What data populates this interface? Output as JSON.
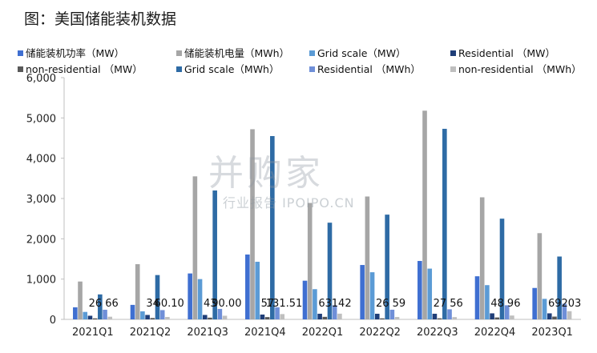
{
  "title": "图：美国储能装机数据",
  "watermark": {
    "main": "并购家",
    "sub": "行业报告 IPOIPO.CN"
  },
  "chart_data": {
    "type": "bar",
    "categories": [
      "2021Q1",
      "2021Q2",
      "2021Q3",
      "2021Q4",
      "2022Q1",
      "2022Q2",
      "2022Q3",
      "2022Q4",
      "2023Q1"
    ],
    "ylim": [
      0,
      6000
    ],
    "yticks": [
      0,
      1000,
      2000,
      3000,
      4000,
      5000,
      6000
    ],
    "ytick_labels": [
      "0",
      "1,000",
      "2,000",
      "3,000",
      "4,000",
      "5,000",
      "6,000"
    ],
    "grid": false,
    "legend_position": "top",
    "series": [
      {
        "name": "储能装机功率（MW）",
        "color": "#3f6fd1",
        "values": [
          300,
          360,
          1140,
          1610,
          960,
          1350,
          1450,
          1070,
          780
        ]
      },
      {
        "name": "储能装机电量（MWh）",
        "color": "#a6a6a6",
        "values": [
          940,
          1370,
          3550,
          4720,
          2890,
          3050,
          5180,
          3030,
          2140
        ]
      },
      {
        "name": "Grid scale（MW）",
        "color": "#5b9bd5",
        "values": [
          185,
          200,
          1000,
          1430,
          750,
          1170,
          1260,
          850,
          510
        ]
      },
      {
        "name": "Residential （MW）",
        "color": "#1f3e78",
        "values": [
          90,
          110,
          110,
          120,
          140,
          140,
          140,
          150,
          150
        ]
      },
      {
        "name": "non-residential （MW）",
        "color": "#595959",
        "values": [
          26,
          34,
          43,
          57,
          63,
          26,
          27,
          48,
          69
        ]
      },
      {
        "name": "Grid scale（MWh）",
        "color": "#2e6ba5",
        "values": [
          620,
          1100,
          3200,
          4550,
          2400,
          2600,
          4730,
          2500,
          1560
        ]
      },
      {
        "name": "Residential （MWh）",
        "color": "#6f8fd8",
        "values": [
          240,
          230,
          260,
          300,
          350,
          240,
          250,
          350,
          390
        ]
      },
      {
        "name": "non-residential （MWh）",
        "color": "#bfbfbf",
        "values": [
          66,
          60.1,
          90.0,
          131.51,
          142,
          59,
          56,
          96,
          203
        ]
      }
    ],
    "data_labels": [
      [
        "26",
        "66"
      ],
      [
        "34",
        "60.10"
      ],
      [
        "43",
        "90.00"
      ],
      [
        "57",
        "131.51"
      ],
      [
        "63",
        "142"
      ],
      [
        "26",
        "59"
      ],
      [
        "27",
        "56"
      ],
      [
        "48",
        "96"
      ],
      [
        "69",
        "203"
      ]
    ]
  }
}
